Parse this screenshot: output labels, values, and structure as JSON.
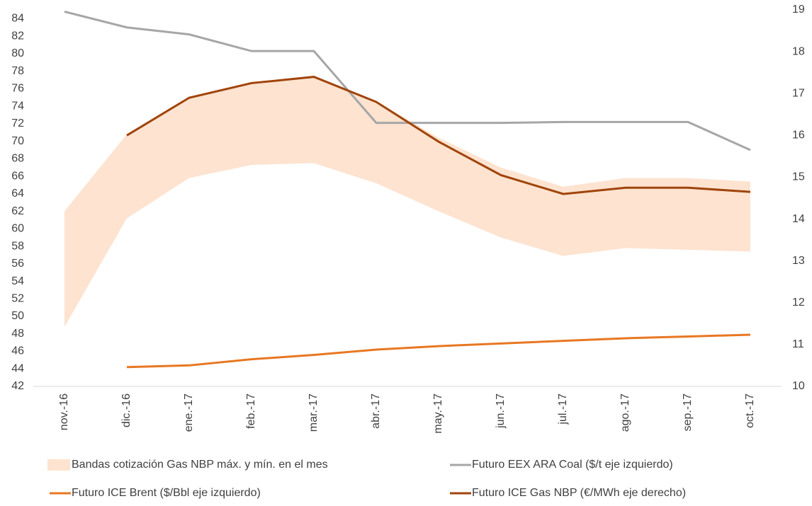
{
  "chart_data": {
    "type": "line",
    "categories": [
      "nov.-16",
      "dic.-16",
      "ene.-17",
      "feb.-17",
      "mar.-17",
      "abr.-17",
      "may.-17",
      "jun.-17",
      "jul.-17",
      "ago.-17",
      "sep.-17",
      "oct.-17"
    ],
    "ylim": [
      42,
      85
    ],
    "yticks": [
      42,
      44,
      46,
      48,
      50,
      52,
      54,
      56,
      58,
      60,
      62,
      64,
      66,
      68,
      70,
      72,
      74,
      76,
      78,
      80,
      82,
      84
    ],
    "y2lim": [
      10,
      19
    ],
    "y2ticks": [
      10,
      11,
      12,
      13,
      14,
      15,
      16,
      17,
      18,
      19
    ],
    "series": [
      {
        "name": "Bandas cotización Gas NBP máx. y mín. en el mes",
        "type": "band",
        "color": "#fde3d0",
        "high": [
          62.0,
          70.8,
          75.0,
          76.8,
          77.3,
          74.6,
          70.4,
          67.0,
          64.8,
          65.8,
          65.8,
          65.4
        ],
        "low": [
          48.8,
          61.2,
          65.8,
          67.3,
          67.5,
          65.2,
          62.0,
          59.0,
          56.9,
          57.8,
          57.6,
          57.4
        ]
      },
      {
        "name": "Futuro EEX ARA Coal ($/t eje izquierdo)",
        "color": "#a6a6a6",
        "values": [
          84.8,
          83.0,
          82.2,
          80.3,
          80.3,
          72.1,
          72.1,
          72.1,
          72.2,
          72.2,
          72.2,
          69.0
        ]
      },
      {
        "name": "Futuro ICE Brent ($/Bbl eje izquierdo)",
        "color": "#e87722",
        "values": [
          null,
          44.2,
          44.4,
          45.1,
          45.6,
          46.2,
          46.6,
          46.9,
          47.2,
          47.5,
          47.7,
          47.9
        ]
      },
      {
        "name": "Futuro ICE Gas NBP (€/MWh eje derecho)",
        "color": "#a0440a",
        "axis": "y2",
        "values": [
          null,
          16.0,
          16.9,
          17.25,
          17.4,
          16.8,
          15.85,
          15.05,
          14.6,
          14.75,
          14.75,
          14.65
        ]
      }
    ]
  }
}
